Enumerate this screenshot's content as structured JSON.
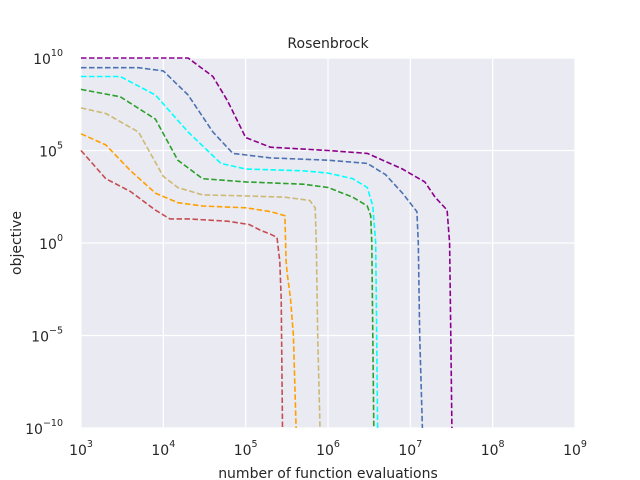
{
  "chart_data": {
    "type": "line",
    "title": "Rosenbrock",
    "xlabel": "number of function evaluations",
    "ylabel": "objective",
    "xscale": "log",
    "yscale": "log",
    "xlim": [
      1000,
      1000000000
    ],
    "ylim": [
      1e-10,
      10000000000.0
    ],
    "grid": true,
    "background": "#eaeaf2",
    "grid_color": "#ffffff",
    "x_ticks": [
      {
        "base": "10",
        "exp": "3",
        "value": 1000
      },
      {
        "base": "10",
        "exp": "4",
        "value": 10000
      },
      {
        "base": "10",
        "exp": "5",
        "value": 100000
      },
      {
        "base": "10",
        "exp": "6",
        "value": 1000000
      },
      {
        "base": "10",
        "exp": "7",
        "value": 10000000
      },
      {
        "base": "10",
        "exp": "8",
        "value": 100000000
      },
      {
        "base": "10",
        "exp": "9",
        "value": 1000000000
      }
    ],
    "y_ticks": [
      {
        "base": "10",
        "exp": "−10",
        "value": 1e-10
      },
      {
        "base": "10",
        "exp": "−5",
        "value": 1e-05
      },
      {
        "base": "10",
        "exp": "0",
        "value": 1
      },
      {
        "base": "10",
        "exp": "5",
        "value": 100000
      },
      {
        "base": "10",
        "exp": "10",
        "value": 10000000000.0
      }
    ],
    "series": [
      {
        "color": "#c44e52",
        "line_style": "dashed",
        "points": [
          [
            1000,
            100000.0
          ],
          [
            2000,
            3000
          ],
          [
            4000,
            600
          ],
          [
            8000,
            60
          ],
          [
            12000,
            20
          ],
          [
            20000,
            20
          ],
          [
            60000,
            15
          ],
          [
            110000,
            10
          ],
          [
            150000,
            5
          ],
          [
            200000,
            3
          ],
          [
            240000,
            2
          ],
          [
            260000,
            0.1
          ],
          [
            270000,
            0.001
          ],
          [
            280000,
            1e-10
          ]
        ]
      },
      {
        "color": "#ff9f00",
        "line_style": "dashed",
        "points": [
          [
            1000,
            800000.0
          ],
          [
            2000,
            200000.0
          ],
          [
            4000,
            8000
          ],
          [
            8000,
            500
          ],
          [
            15000,
            150
          ],
          [
            30000,
            100
          ],
          [
            100000,
            80
          ],
          [
            200000,
            50
          ],
          [
            300000,
            30
          ],
          [
            310000,
            0.1
          ],
          [
            320000,
            0.02
          ],
          [
            350000,
            0.001
          ],
          [
            380000,
            1e-05
          ],
          [
            410000,
            1e-10
          ]
        ]
      },
      {
        "color": "#ccb974",
        "line_style": "dashed",
        "points": [
          [
            1000,
            20000000.0
          ],
          [
            2000,
            10000000.0
          ],
          [
            5000,
            1000000.0
          ],
          [
            10000,
            4000
          ],
          [
            15000,
            1000
          ],
          [
            30000,
            400
          ],
          [
            100000,
            350
          ],
          [
            300000,
            300
          ],
          [
            600000,
            200
          ],
          [
            700000,
            80
          ],
          [
            720000,
            1
          ],
          [
            750000,
            1e-05
          ],
          [
            800000,
            1e-10
          ]
        ]
      },
      {
        "color": "#2ca02c",
        "line_style": "dashed",
        "points": [
          [
            1000,
            200000000.0
          ],
          [
            3000,
            80000000.0
          ],
          [
            8000,
            5000000.0
          ],
          [
            15000,
            30000.0
          ],
          [
            30000,
            3000
          ],
          [
            100000,
            2000
          ],
          [
            500000,
            1500
          ],
          [
            1000000,
            1000
          ],
          [
            2000000,
            300
          ],
          [
            3000000,
            100
          ],
          [
            3300000,
            30
          ],
          [
            3400000,
            1
          ],
          [
            3500000,
            1e-05
          ],
          [
            3600000,
            1e-10
          ]
        ]
      },
      {
        "color": "#00ffff",
        "line_style": "dashed",
        "points": [
          [
            1000,
            1000000000.0
          ],
          [
            3000,
            1000000000.0
          ],
          [
            8000,
            100000000.0
          ],
          [
            20000,
            1000000.0
          ],
          [
            50000,
            20000.0
          ],
          [
            100000,
            10000.0
          ],
          [
            500000,
            8000
          ],
          [
            1000000,
            6000
          ],
          [
            2000000,
            3000
          ],
          [
            3000000,
            1000
          ],
          [
            3500000,
            100
          ],
          [
            3800000,
            1
          ],
          [
            3900000,
            1e-05
          ],
          [
            4000000,
            1e-10
          ]
        ]
      },
      {
        "color": "#4c72b0",
        "line_style": "dashed",
        "points": [
          [
            1000,
            3000000000.0
          ],
          [
            5000,
            3000000000.0
          ],
          [
            10000,
            2000000000.0
          ],
          [
            20000,
            100000000.0
          ],
          [
            40000,
            1000000.0
          ],
          [
            70000,
            70000.0
          ],
          [
            200000,
            40000.0
          ],
          [
            1000000,
            30000.0
          ],
          [
            3000000,
            20000.0
          ],
          [
            5000000,
            5000
          ],
          [
            8000000,
            500
          ],
          [
            12000000,
            50
          ],
          [
            12500000,
            1
          ],
          [
            13000000,
            1e-05
          ],
          [
            14000000,
            1e-10
          ]
        ]
      },
      {
        "color": "#8b008b",
        "line_style": "dashed",
        "points": [
          [
            1000,
            10000000000.0
          ],
          [
            10000,
            10000000000.0
          ],
          [
            20000,
            10000000000.0
          ],
          [
            40000,
            1000000000.0
          ],
          [
            60000,
            50000000.0
          ],
          [
            100000,
            500000.0
          ],
          [
            200000,
            150000.0
          ],
          [
            1000000,
            100000.0
          ],
          [
            3000000,
            70000.0
          ],
          [
            8000000,
            10000.0
          ],
          [
            15000000,
            2000
          ],
          [
            20000000,
            300
          ],
          [
            28000000,
            60
          ],
          [
            30000000,
            1
          ],
          [
            31000000,
            1e-05
          ],
          [
            32000000,
            1e-10
          ]
        ]
      }
    ]
  }
}
